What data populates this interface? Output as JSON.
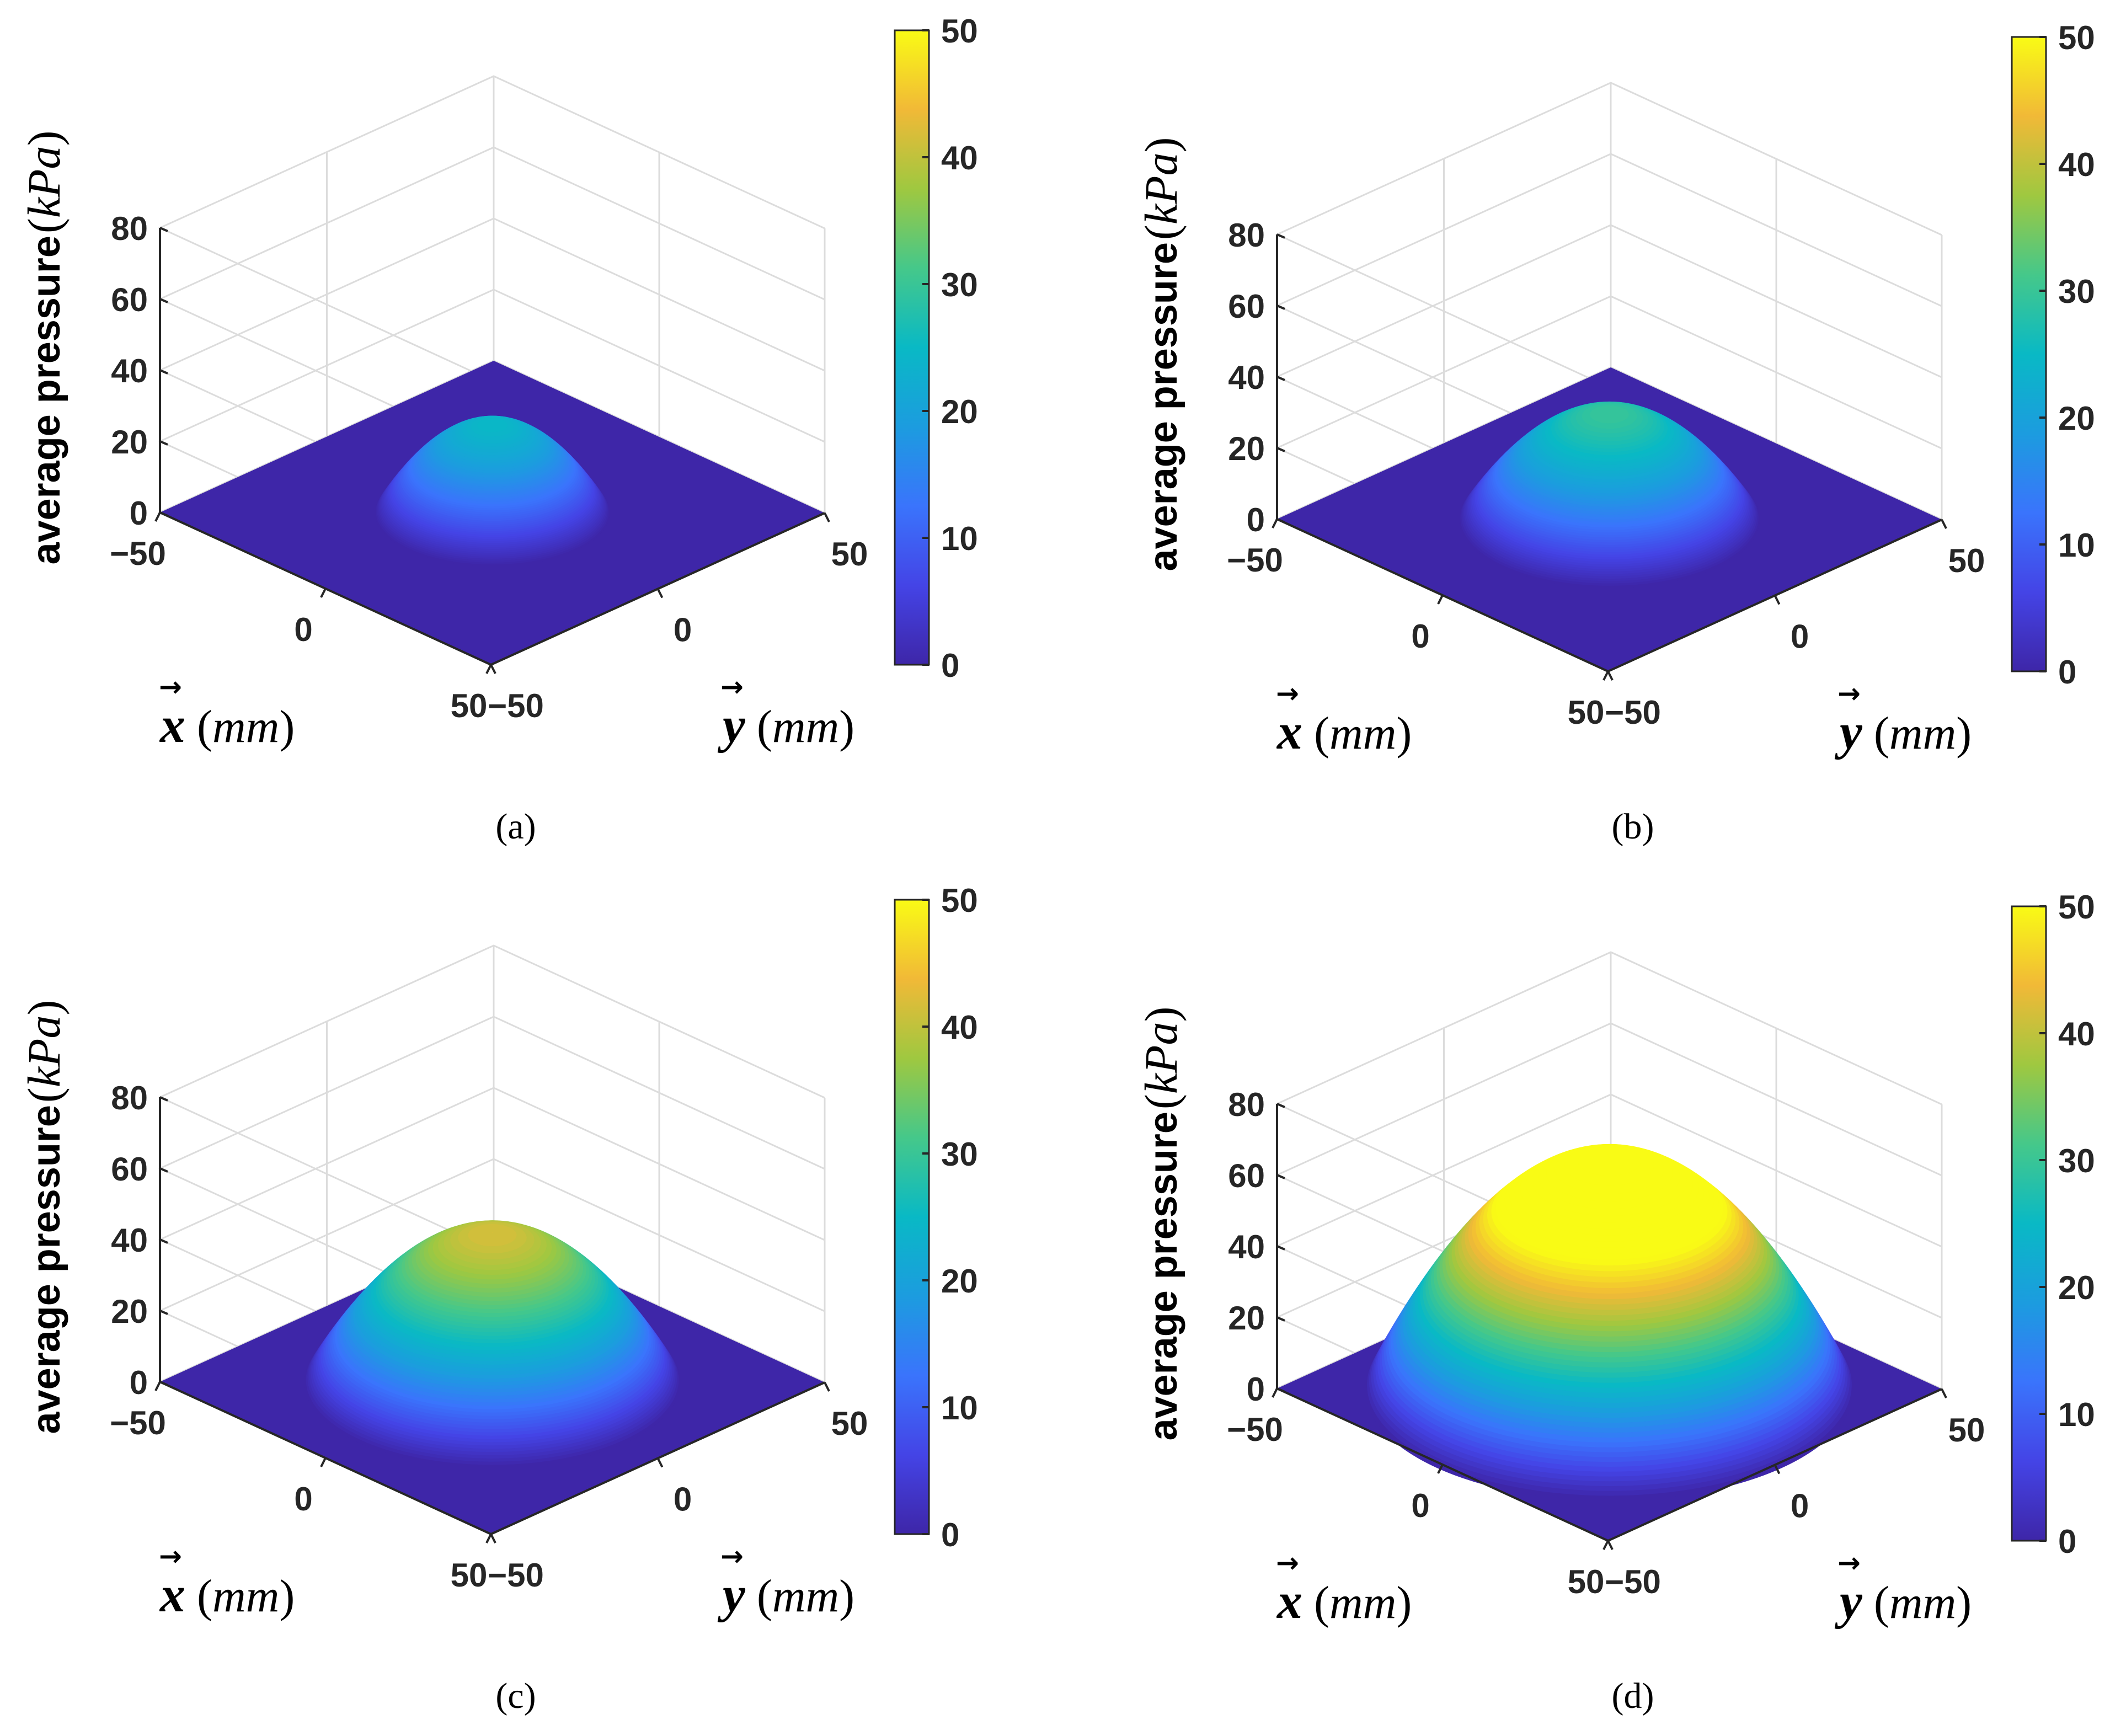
{
  "chart_data": [
    {
      "type": "surface",
      "caption": "(a)",
      "zlabel": "average pressure",
      "zlabel_unit": "kPa",
      "xlabel": "x",
      "xlabel_unit": "mm",
      "ylabel": "y",
      "ylabel_unit": "mm",
      "xlim": [
        -50,
        50
      ],
      "ylim": [
        -50,
        50
      ],
      "zlim": [
        0,
        80
      ],
      "xticks": [
        "-50",
        "0",
        "50"
      ],
      "yticks": [
        "-50",
        "0",
        "50"
      ],
      "zticks": [
        "0",
        "20",
        "40",
        "60",
        "80"
      ],
      "colorbar": {
        "ticks": [
          "0",
          "10",
          "20",
          "30",
          "40",
          "50"
        ],
        "range": [
          0,
          50
        ],
        "colormap": "parula"
      },
      "surface": {
        "shape": "dome",
        "peak": 25,
        "radius": 25,
        "center": [
          0,
          0
        ]
      }
    },
    {
      "type": "surface",
      "caption": "(b)",
      "zlabel": "average pressure",
      "zlabel_unit": "kPa",
      "xlabel": "x",
      "xlabel_unit": "mm",
      "ylabel": "y",
      "ylabel_unit": "mm",
      "xlim": [
        -50,
        50
      ],
      "ylim": [
        -50,
        50
      ],
      "zlim": [
        0,
        80
      ],
      "xticks": [
        "-50",
        "0",
        "50"
      ],
      "yticks": [
        "-50",
        "0",
        "50"
      ],
      "zticks": [
        "0",
        "20",
        "40",
        "60",
        "80"
      ],
      "colorbar": {
        "ticks": [
          "0",
          "10",
          "20",
          "30",
          "40",
          "50"
        ],
        "range": [
          0,
          50
        ],
        "colormap": "parula"
      },
      "surface": {
        "shape": "dome",
        "peak": 30,
        "radius": 32,
        "center": [
          0,
          0
        ]
      }
    },
    {
      "type": "surface",
      "caption": "(c)",
      "zlabel": "average pressure",
      "zlabel_unit": "kPa",
      "xlabel": "x",
      "xlabel_unit": "mm",
      "ylabel": "y",
      "ylabel_unit": "mm",
      "xlim": [
        -50,
        50
      ],
      "ylim": [
        -50,
        50
      ],
      "zlim": [
        0,
        80
      ],
      "xticks": [
        "-50",
        "0",
        "50"
      ],
      "yticks": [
        "-50",
        "0",
        "50"
      ],
      "zticks": [
        "0",
        "20",
        "40",
        "60",
        "80"
      ],
      "colorbar": {
        "ticks": [
          "0",
          "10",
          "20",
          "30",
          "40",
          "50"
        ],
        "range": [
          0,
          50
        ],
        "colormap": "parula"
      },
      "surface": {
        "shape": "dome",
        "peak": 42,
        "radius": 40,
        "center": [
          0,
          0
        ]
      }
    },
    {
      "type": "surface",
      "caption": "(d)",
      "zlabel": "average pressure",
      "zlabel_unit": "kPa",
      "xlabel": "x",
      "xlabel_unit": "mm",
      "ylabel": "y",
      "ylabel_unit": "mm",
      "xlim": [
        -50,
        50
      ],
      "ylim": [
        -50,
        50
      ],
      "zlim": [
        0,
        80
      ],
      "xticks": [
        "-50",
        "0",
        "50"
      ],
      "yticks": [
        "-50",
        "0",
        "50"
      ],
      "zticks": [
        "0",
        "20",
        "40",
        "60",
        "80"
      ],
      "colorbar": {
        "ticks": [
          "0",
          "10",
          "20",
          "30",
          "40",
          "50"
        ],
        "range": [
          0,
          50
        ],
        "colormap": "parula"
      },
      "surface": {
        "shape": "dome",
        "peak": 65,
        "radius": 52,
        "center": [
          0,
          0
        ]
      }
    }
  ]
}
